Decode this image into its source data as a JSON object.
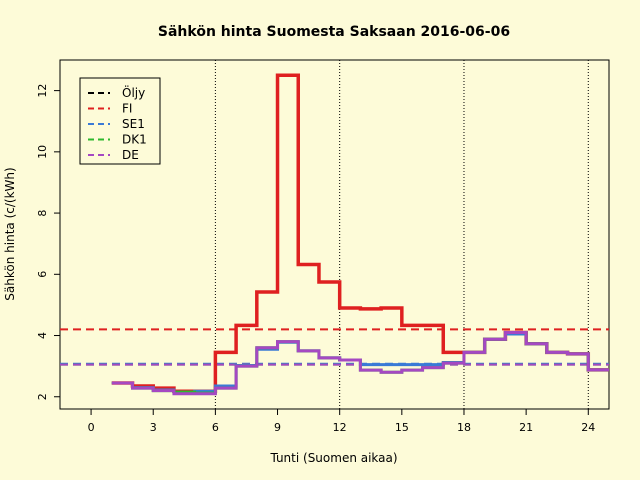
{
  "chart_data": {
    "type": "line",
    "title": "Sähkön hinta Suomesta Saksaan 2016-06-06",
    "xlabel": "Tunti (Suomen aikaa)",
    "ylabel": "Sähkön hinta (c/(kWh)",
    "xlim": [
      -1.5,
      25
    ],
    "ylim": [
      1.6,
      13
    ],
    "xticks": [
      0,
      3,
      6,
      9,
      12,
      15,
      18,
      21,
      24
    ],
    "yticks": [
      2,
      4,
      6,
      8,
      10,
      12
    ],
    "vlines": [
      6,
      12,
      18,
      24
    ],
    "step": "hourly",
    "legend_position": "top-left",
    "legend": [
      {
        "name": "Öljy",
        "color": "#000000"
      },
      {
        "name": "FI",
        "color": "#df2020"
      },
      {
        "name": "SE1",
        "color": "#3a7ad6"
      },
      {
        "name": "DK1",
        "color": "#2db82d"
      },
      {
        "name": "DE",
        "color": "#a548c2"
      }
    ],
    "series": [
      {
        "name": "FI",
        "color": "#df2020",
        "x": [
          1,
          2,
          3,
          4,
          5,
          6,
          7,
          8,
          9,
          10,
          11,
          12,
          13,
          14,
          15,
          16,
          17,
          18,
          19,
          20,
          21,
          22,
          23,
          24
        ],
        "values": [
          2.45,
          2.35,
          2.28,
          2.18,
          2.18,
          3.45,
          4.33,
          5.42,
          12.5,
          6.32,
          5.75,
          4.9,
          4.87,
          4.9,
          4.33,
          4.33,
          3.45,
          3.45,
          3.88,
          4.1,
          3.73,
          3.45,
          3.4,
          2.88
        ],
        "mean": 4.2
      },
      {
        "name": "SE1",
        "color": "#3a7ad6",
        "x": [
          1,
          2,
          3,
          4,
          5,
          6,
          7,
          8,
          9,
          10,
          11,
          12,
          13,
          14,
          15,
          16,
          17,
          18,
          19,
          20,
          21,
          22,
          23,
          24
        ],
        "values": [
          2.45,
          2.3,
          2.22,
          2.15,
          2.18,
          2.35,
          3.02,
          3.55,
          3.78,
          3.5,
          3.27,
          3.2,
          3.05,
          3.05,
          3.05,
          3.05,
          3.12,
          3.45,
          3.88,
          4.05,
          3.73,
          3.45,
          3.4,
          2.88
        ],
        "mean": 3.08
      },
      {
        "name": "DK1",
        "color": "#2db82d",
        "x": [
          1,
          2,
          3,
          4,
          5,
          6,
          7,
          8,
          9,
          10,
          11,
          12,
          13,
          14,
          15,
          16,
          17,
          18,
          19,
          20,
          21,
          22,
          23,
          24
        ],
        "values": [
          2.45,
          2.28,
          2.2,
          2.15,
          2.12,
          2.28,
          3.0,
          3.6,
          3.8,
          3.5,
          3.27,
          3.2,
          2.87,
          2.8,
          2.87,
          2.95,
          3.1,
          3.45,
          3.88,
          4.1,
          3.73,
          3.45,
          3.4,
          2.88
        ],
        "mean": 3.05
      },
      {
        "name": "DE",
        "color": "#a548c2",
        "x": [
          1,
          2,
          3,
          4,
          5,
          6,
          7,
          8,
          9,
          10,
          11,
          12,
          13,
          14,
          15,
          16,
          17,
          18,
          19,
          20,
          21,
          22,
          23,
          24
        ],
        "values": [
          2.45,
          2.28,
          2.2,
          2.1,
          2.1,
          2.28,
          3.0,
          3.6,
          3.8,
          3.5,
          3.27,
          3.2,
          2.87,
          2.8,
          2.87,
          2.95,
          3.1,
          3.45,
          3.88,
          4.1,
          3.73,
          3.45,
          3.4,
          2.88
        ],
        "mean": 3.05
      }
    ]
  }
}
